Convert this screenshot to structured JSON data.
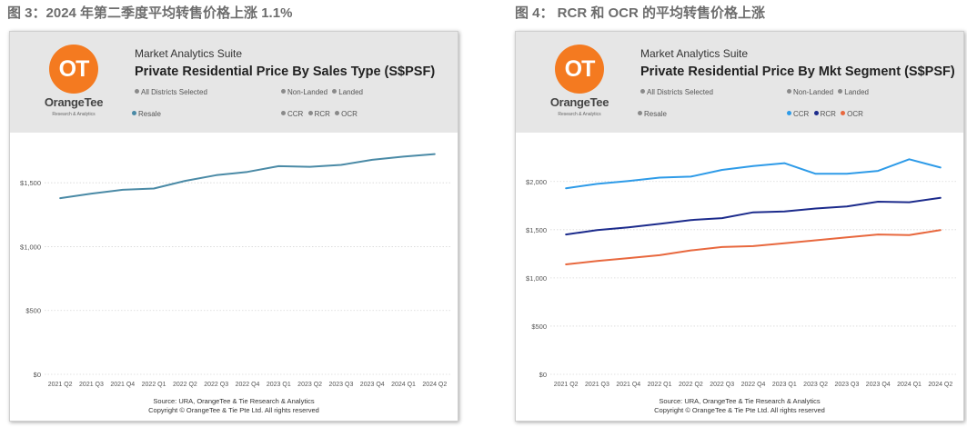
{
  "captions": {
    "left": "图 3：2024 年第二季度平均转售价格上涨 1.1%",
    "right": "图 4： RCR 和 OCR 的平均转售价格上涨"
  },
  "brand": {
    "name": "OrangeTee",
    "sub": "Research & Analytics",
    "logo_text": "OT",
    "logo_color": "#f47a20"
  },
  "suite_label": "Market Analytics Suite",
  "source_line1": "Source: URA, OrangeTee & Tie Research & Analytics",
  "source_line2": "Copyright © OrangeTee & Tie Pte Ltd. All rights reserved",
  "chart_data": [
    {
      "type": "line",
      "title": "Private Residential Price By Sales Type (S$PSF)",
      "legends": {
        "districts": "All Districts Selected",
        "property": [
          "Non-Landed",
          "Landed"
        ],
        "sales": [
          "Resale"
        ],
        "segments": [
          "CCR",
          "RCR",
          "OCR"
        ]
      },
      "categories": [
        "2021 Q2",
        "2021 Q3",
        "2021 Q4",
        "2022 Q1",
        "2022 Q2",
        "2022 Q3",
        "2022 Q4",
        "2023 Q1",
        "2023 Q2",
        "2023 Q3",
        "2023 Q4",
        "2024 Q1",
        "2024 Q2"
      ],
      "series": [
        {
          "name": "Resale",
          "color": "#4a8aa6",
          "values": [
            1380,
            1415,
            1445,
            1455,
            1515,
            1560,
            1585,
            1630,
            1625,
            1640,
            1680,
            1705,
            1725
          ]
        }
      ],
      "yticks": [
        0,
        500,
        1000,
        1500
      ],
      "ytick_labels": [
        "$0",
        "$500",
        "$1,000",
        "$1,500"
      ],
      "ylim": [
        0,
        1850
      ],
      "grid": true
    },
    {
      "type": "line",
      "title": "Private Residential Price By Mkt Segment (S$PSF)",
      "legends": {
        "districts": "All Districts Selected",
        "property": [
          "Non-Landed",
          "Landed"
        ],
        "sales": [
          "Resale"
        ],
        "segments": [
          "CCR",
          "RCR",
          "OCR"
        ]
      },
      "categories": [
        "2021 Q2",
        "2021 Q3",
        "2021 Q4",
        "2022 Q1",
        "2022 Q2",
        "2022 Q3",
        "2022 Q4",
        "2023 Q1",
        "2023 Q2",
        "2023 Q3",
        "2023 Q4",
        "2024 Q1",
        "2024 Q2"
      ],
      "series": [
        {
          "name": "CCR",
          "color": "#2e9be8",
          "values": [
            1930,
            1975,
            2005,
            2040,
            2050,
            2120,
            2160,
            2190,
            2080,
            2080,
            2110,
            2230,
            2145
          ]
        },
        {
          "name": "RCR",
          "color": "#1c2b8c",
          "values": [
            1450,
            1495,
            1525,
            1560,
            1600,
            1620,
            1680,
            1690,
            1720,
            1740,
            1790,
            1785,
            1830
          ]
        },
        {
          "name": "OCR",
          "color": "#e8683e",
          "values": [
            1140,
            1175,
            1205,
            1235,
            1285,
            1320,
            1330,
            1360,
            1390,
            1420,
            1450,
            1445,
            1495
          ]
        }
      ],
      "yticks": [
        0,
        500,
        1000,
        1500,
        2000
      ],
      "ytick_labels": [
        "$0",
        "$500",
        "$1,000",
        "$1,500",
        "$2,000"
      ],
      "ylim": [
        0,
        2450
      ],
      "grid": true
    }
  ]
}
